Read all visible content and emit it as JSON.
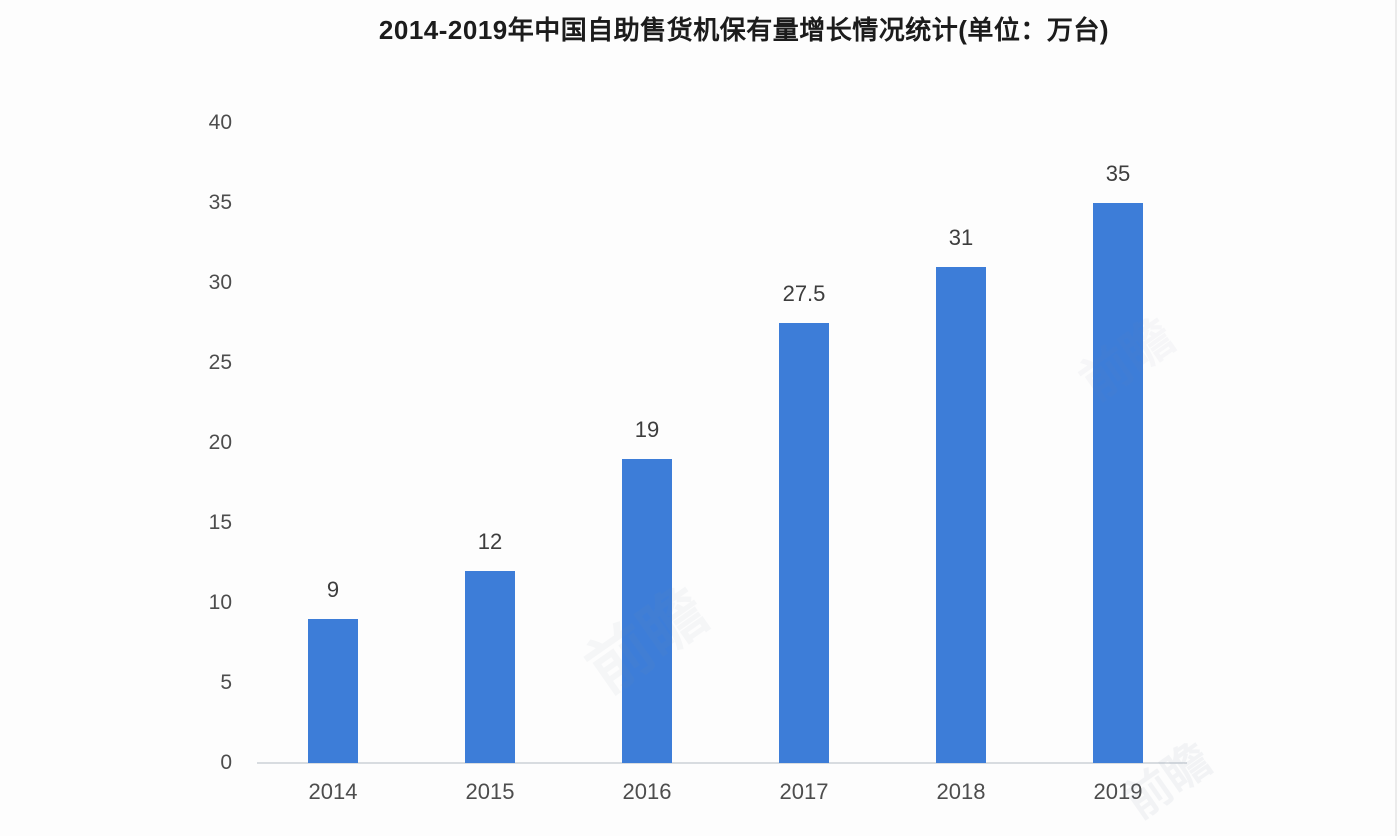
{
  "chart_data": {
    "type": "bar",
    "title": "2014-2019年中国自助售货机保有量增长情况统计(单位：万台)",
    "categories": [
      "2014",
      "2015",
      "2016",
      "2017",
      "2018",
      "2019"
    ],
    "values": [
      9,
      12,
      19,
      27.5,
      31,
      35
    ],
    "xlabel": "",
    "ylabel": "",
    "ylim": [
      0,
      40
    ],
    "yticks": [
      0,
      5,
      10,
      15,
      20,
      25,
      30,
      35,
      40
    ],
    "grid": false,
    "legend": false,
    "data_labels_shown": true,
    "colors": {
      "bar": "#3d7dd8",
      "axis_line": "#d8dce0",
      "tick_label": "#4d4d4d",
      "value_label": "#3d3d3d",
      "title": "#1c1c1c"
    }
  },
  "watermark": {
    "text": "前瞻",
    "color": "#7d8fa5"
  },
  "page": {
    "background": "#fdfdfd",
    "right_edge_line_color": "#ebebeb"
  }
}
